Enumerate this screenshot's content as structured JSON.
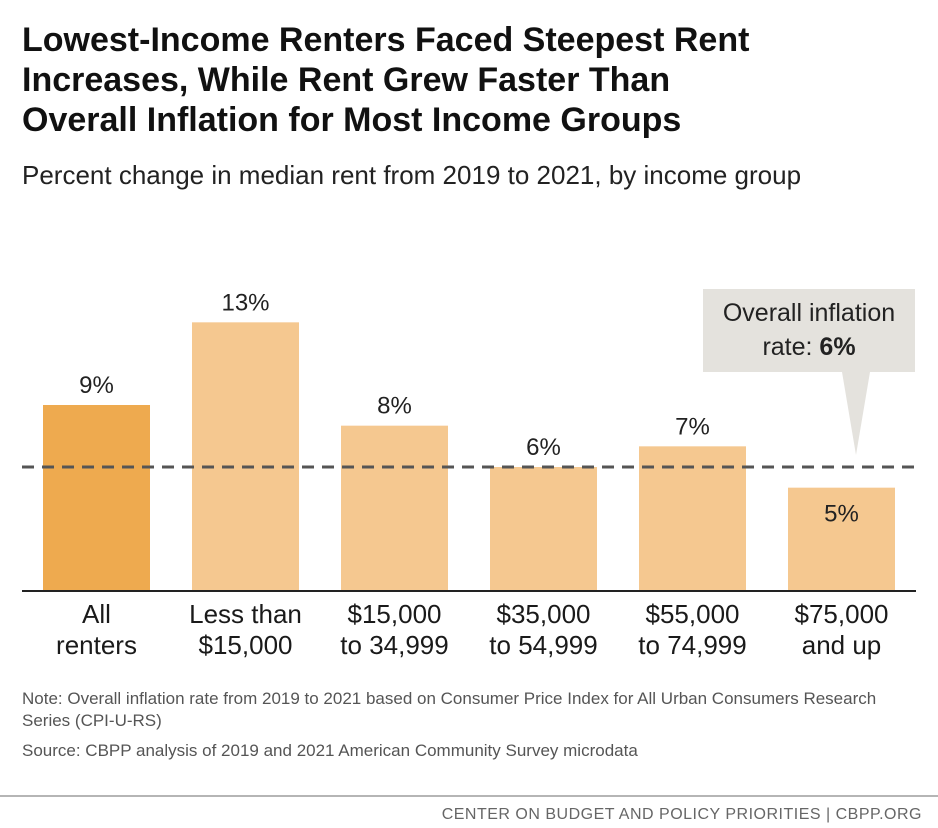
{
  "title_lines": [
    "Lowest-Income Renters Faced Steepest Rent",
    "Increases, While Rent Grew Faster Than",
    "Overall Inflation for Most Income Groups"
  ],
  "subtitle": "Percent change in median rent from 2019 to 2021, by income group",
  "chart_data": {
    "type": "bar",
    "categories": [
      [
        "All",
        "renters"
      ],
      [
        "Less than",
        "$15,000"
      ],
      [
        "$15,000",
        "to 34,999"
      ],
      [
        "$35,000",
        "to 54,999"
      ],
      [
        "$55,000",
        "to 74,999"
      ],
      [
        "$75,000",
        "and up"
      ]
    ],
    "values": [
      9,
      13,
      8,
      6,
      7,
      5
    ],
    "value_labels": [
      "9%",
      "13%",
      "8%",
      "6%",
      "7%",
      "5%"
    ],
    "ylim": [
      0,
      15
    ],
    "reference_line": {
      "value": 6,
      "style": "dashed",
      "color": "#555555"
    },
    "annotation": {
      "line1": "Overall inflation",
      "line2_prefix": "rate: ",
      "line2_value": "6%"
    },
    "colors": {
      "highlight": "#eeaa4f",
      "bar": "#f5c890",
      "callout_bg": "#e4e2dd",
      "axis": "#222222"
    }
  },
  "note": "Note: Overall inflation rate from 2019 to 2021 based on Consumer Price Index for All Urban Consumers Research Series (CPI-U-RS)",
  "source": "Source: CBPP analysis of 2019 and 2021 American Community Survey microdata",
  "footer": "CENTER ON BUDGET AND POLICY PRIORITIES | CBPP.ORG"
}
